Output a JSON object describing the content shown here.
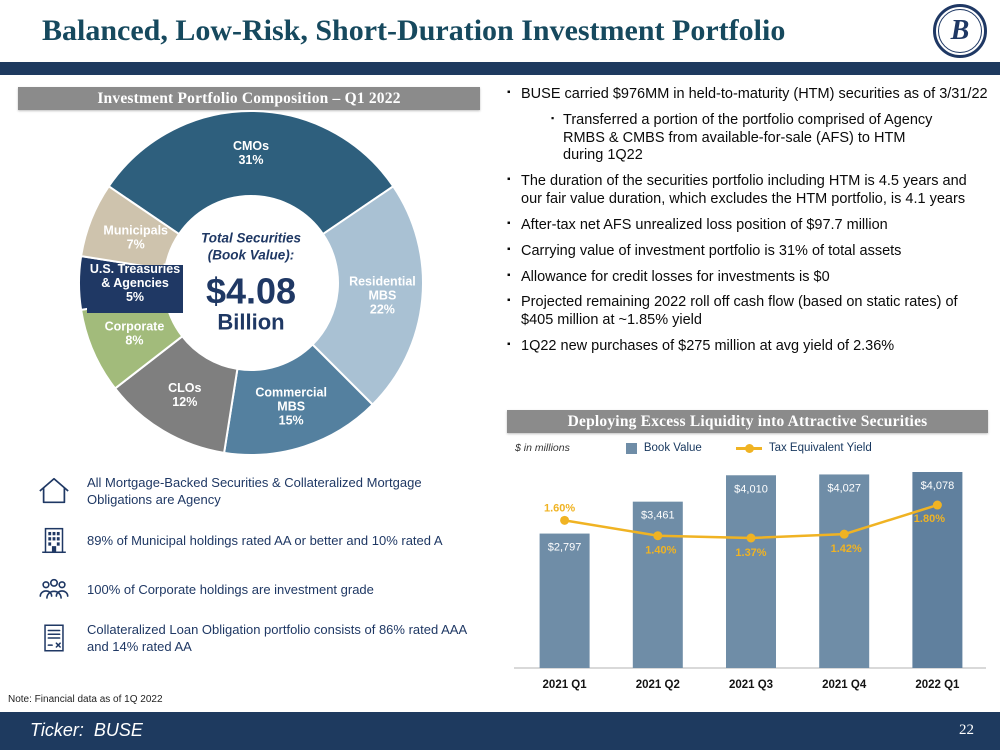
{
  "slide": {
    "title": "Balanced, Low-Risk, Short-Duration Investment Portfolio",
    "logo_letter": "B",
    "footer_ticker": "Ticker:  BUSE",
    "page_number": "22",
    "note": "Note: Financial data as of 1Q 2022"
  },
  "left": {
    "header": "Investment Portfolio Composition – Q1 2022",
    "donut_center": {
      "line1": "Total Securities",
      "line2": "(Book Value):",
      "value": "$4.08",
      "unit": "Billion"
    },
    "callouts": [
      {
        "icon": "house-icon",
        "text": "All Mortgage-Backed Securities & Collateralized Mortgage Obligations are Agency"
      },
      {
        "icon": "building-icon",
        "text": "89% of Municipal holdings rated AA or better and 10% rated A"
      },
      {
        "icon": "people-icon",
        "text": "100% of Corporate holdings are investment grade"
      },
      {
        "icon": "document-icon",
        "text": "Collateralized Loan Obligation portfolio consists of 86% rated AAA and 14% rated AA"
      }
    ]
  },
  "right": {
    "bullets": [
      {
        "level": 1,
        "text": "BUSE carried $976MM in held-to-maturity (HTM) securities as of 3/31/22"
      },
      {
        "level": 2,
        "text": "Transferred a portion of the portfolio comprised of Agency RMBS & CMBS from available-for-sale (AFS) to HTM during 1Q22"
      },
      {
        "level": 1,
        "text": "The duration of the securities portfolio including HTM is 4.5 years and our fair value duration, which excludes the HTM portfolio, is 4.1 years"
      },
      {
        "level": 1,
        "text": "After-tax net AFS unrealized loss position of $97.7 million"
      },
      {
        "level": 1,
        "text": "Carrying value of investment portfolio is 31% of total assets"
      },
      {
        "level": 1,
        "text": "Allowance for credit losses for investments is $0"
      },
      {
        "level": 1,
        "text": "Projected remaining 2022 roll off cash flow (based on static rates) of $405 million at ~1.85% yield"
      },
      {
        "level": 1,
        "text": "1Q22 new purchases of $275 million at avg yield of 2.36%"
      }
    ],
    "chart_header": "Deploying Excess Liquidity into Attractive Securities",
    "chart_note": "$ in millions",
    "legend": [
      {
        "label": "Book Value",
        "color": "#6f8da7"
      },
      {
        "label": "Tax Equivalent Yield",
        "color": "#f0b323"
      }
    ]
  },
  "chart_data": [
    {
      "type": "pie",
      "title": "Investment Portfolio Composition – Q1 2022",
      "center_label": "Total Securities (Book Value): $4.08 Billion",
      "start_angle": -55.8,
      "slices": [
        {
          "label": "CMOs",
          "pct": 31,
          "color": "#2e5f7d",
          "label_lines": [
            "CMOs",
            "31%"
          ],
          "label_r": 130
        },
        {
          "label": "Residential MBS",
          "pct": 22,
          "color": "#a9c1d3",
          "label_lines": [
            "Residential",
            "MBS",
            "22%"
          ],
          "label_r": 132
        },
        {
          "label": "Commercial MBS",
          "pct": 15,
          "color": "#54809f",
          "label_lines": [
            "Commercial",
            "MBS",
            "15%"
          ],
          "label_r": 130
        },
        {
          "label": "CLOs",
          "pct": 12,
          "color": "#7f7f7f",
          "label_lines": [
            "CLOs",
            "12%"
          ],
          "label_r": 130
        },
        {
          "label": "Corporate",
          "pct": 8,
          "color": "#a2bb7b",
          "label_lines": [
            "Corporate",
            "8%"
          ],
          "label_r": 127
        },
        {
          "label": "U.S. Treasuries & Agencies",
          "pct": 5,
          "color": "#1f3864",
          "label_lines": [
            "U.S. Treasuries",
            "& Agencies",
            "5%"
          ],
          "label_r": 116,
          "label_bg": true
        },
        {
          "label": "Municipals",
          "pct": 7,
          "color": "#cec3ad",
          "label_lines": [
            "Municipals",
            "7%"
          ],
          "label_r": 124
        }
      ]
    },
    {
      "type": "bar",
      "title": "Deploying Excess Liquidity into Attractive Securities",
      "ylabel": "$ in millions",
      "categories": [
        "2021 Q1",
        "2021 Q2",
        "2021 Q3",
        "2021 Q4",
        "2022 Q1"
      ],
      "series": [
        {
          "name": "Book Value",
          "type": "bar",
          "values": [
            2797,
            3461,
            4010,
            4027,
            4078
          ],
          "labels": [
            "$2,797",
            "$3,461",
            "$4,010",
            "$4,027",
            "$4,078"
          ]
        },
        {
          "name": "Tax Equivalent Yield",
          "type": "line",
          "values": [
            1.6,
            1.4,
            1.37,
            1.42,
            1.8
          ],
          "labels": [
            "1.60%",
            "1.40%",
            "1.37%",
            "1.42%",
            "1.80%"
          ]
        }
      ],
      "bar_colors": [
        "#6f8da7",
        "#6f8da7",
        "#6f8da7",
        "#6f8da7",
        "#60809e"
      ],
      "line_color": "#f0b323",
      "legend_position": "top"
    }
  ]
}
